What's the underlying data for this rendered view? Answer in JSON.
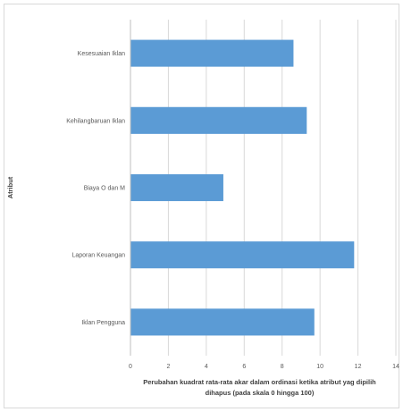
{
  "chart_data": {
    "type": "bar",
    "orientation": "horizontal",
    "categories": [
      "Kesesuaian Iklan",
      "Kehilangbaruan Iklan",
      "Biaya O dan M",
      "Laporan Keuangan",
      "Iklan Pengguna"
    ],
    "values": [
      8.6,
      9.3,
      4.9,
      11.8,
      9.7
    ],
    "xlabel_line1": "Perubahan kuadrat rata-rata akar dalam ordinasi ketika atribut yag dipilih",
    "xlabel_line2": "dihapus (pada skala 0 hingga 100)",
    "ylabel": "Atribut",
    "xlim": [
      0,
      14
    ],
    "xticks": [
      0,
      2,
      4,
      6,
      8,
      10,
      12,
      14
    ],
    "grid": true,
    "bar_color": "#5b9bd5",
    "grid_color": "#d9d9d9"
  }
}
